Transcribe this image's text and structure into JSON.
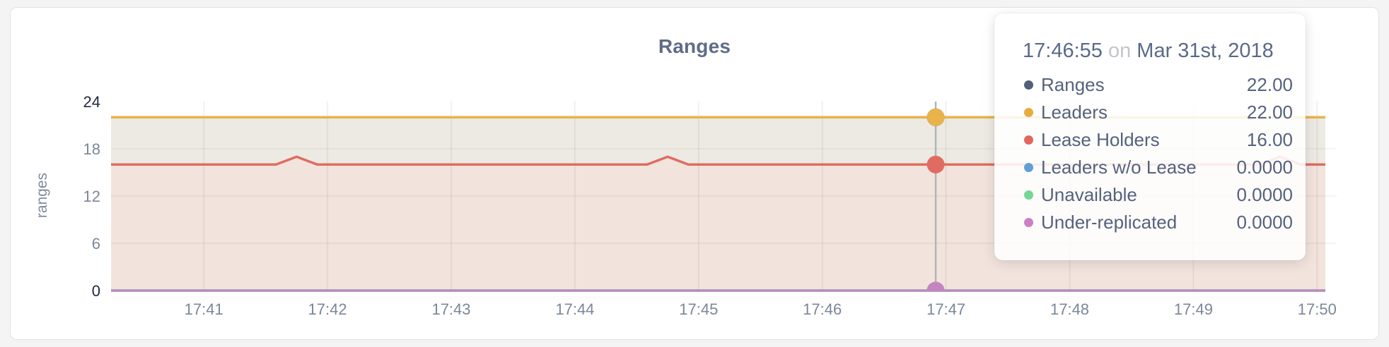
{
  "card": {
    "title": "Ranges"
  },
  "y_axis": {
    "title": "ranges"
  },
  "tooltip": {
    "time": "17:46:55",
    "conjunction": "on",
    "date": "Mar 31st, 2018",
    "rows": [
      {
        "label": "Ranges",
        "value": "22.00",
        "color": "#525f77"
      },
      {
        "label": "Leaders",
        "value": "22.00",
        "color": "#e6ac3e"
      },
      {
        "label": "Lease Holders",
        "value": "16.00",
        "color": "#e2665c"
      },
      {
        "label": "Leaders w/o Lease",
        "value": "0.0000",
        "color": "#619ed3"
      },
      {
        "label": "Unavailable",
        "value": "0.0000",
        "color": "#72d795"
      },
      {
        "label": "Under-replicated",
        "value": "0.0000",
        "color": "#ca80c5"
      }
    ]
  },
  "chart_data": {
    "type": "area",
    "title": "Ranges",
    "ylabel": "ranges",
    "x_unit": "seconds after 17:40:00 on Mar 31st, 2018",
    "x_domain": [
      15,
      604
    ],
    "ylim": [
      0,
      24
    ],
    "y_ticks": [
      0,
      6,
      12,
      18,
      24
    ],
    "x_ticks": [
      {
        "t": 60,
        "label": "17:41"
      },
      {
        "t": 120,
        "label": "17:42"
      },
      {
        "t": 180,
        "label": "17:43"
      },
      {
        "t": 240,
        "label": "17:44"
      },
      {
        "t": 300,
        "label": "17:45"
      },
      {
        "t": 360,
        "label": "17:46"
      },
      {
        "t": 420,
        "label": "17:47"
      },
      {
        "t": 480,
        "label": "17:48"
      },
      {
        "t": 540,
        "label": "17:49"
      },
      {
        "t": 600,
        "label": "17:50"
      }
    ],
    "grid": true,
    "legend_position": "tooltip-only",
    "hover": {
      "t": 415,
      "time_label": "17:46:55"
    },
    "series": [
      {
        "name": "Ranges",
        "color": "#545f77",
        "fill": null,
        "points": [
          [
            15,
            22
          ],
          [
            604,
            22
          ]
        ]
      },
      {
        "name": "Leaders",
        "color": "#e8b34a",
        "fill": "#eceae2",
        "points": [
          [
            15,
            22
          ],
          [
            604,
            22
          ]
        ]
      },
      {
        "name": "Lease Holders",
        "color": "#e06c61",
        "fill": "#f2e3dd",
        "points": [
          [
            15,
            16
          ],
          [
            95,
            16
          ],
          [
            105,
            17
          ],
          [
            115,
            16
          ],
          [
            275,
            16
          ],
          [
            285,
            17
          ],
          [
            295,
            16
          ],
          [
            572,
            16
          ],
          [
            582,
            17
          ],
          [
            592,
            16
          ],
          [
            604,
            16
          ]
        ]
      },
      {
        "name": "Leaders w/o Lease",
        "color": "#619ed3",
        "fill": null,
        "points": [
          [
            15,
            0
          ],
          [
            604,
            0
          ]
        ]
      },
      {
        "name": "Unavailable",
        "color": "#72d795",
        "fill": null,
        "points": [
          [
            15,
            0
          ],
          [
            604,
            0
          ]
        ]
      },
      {
        "name": "Under-replicated",
        "color": "#c584c0",
        "fill": null,
        "points": [
          [
            15,
            0
          ],
          [
            604,
            0
          ]
        ]
      }
    ]
  }
}
